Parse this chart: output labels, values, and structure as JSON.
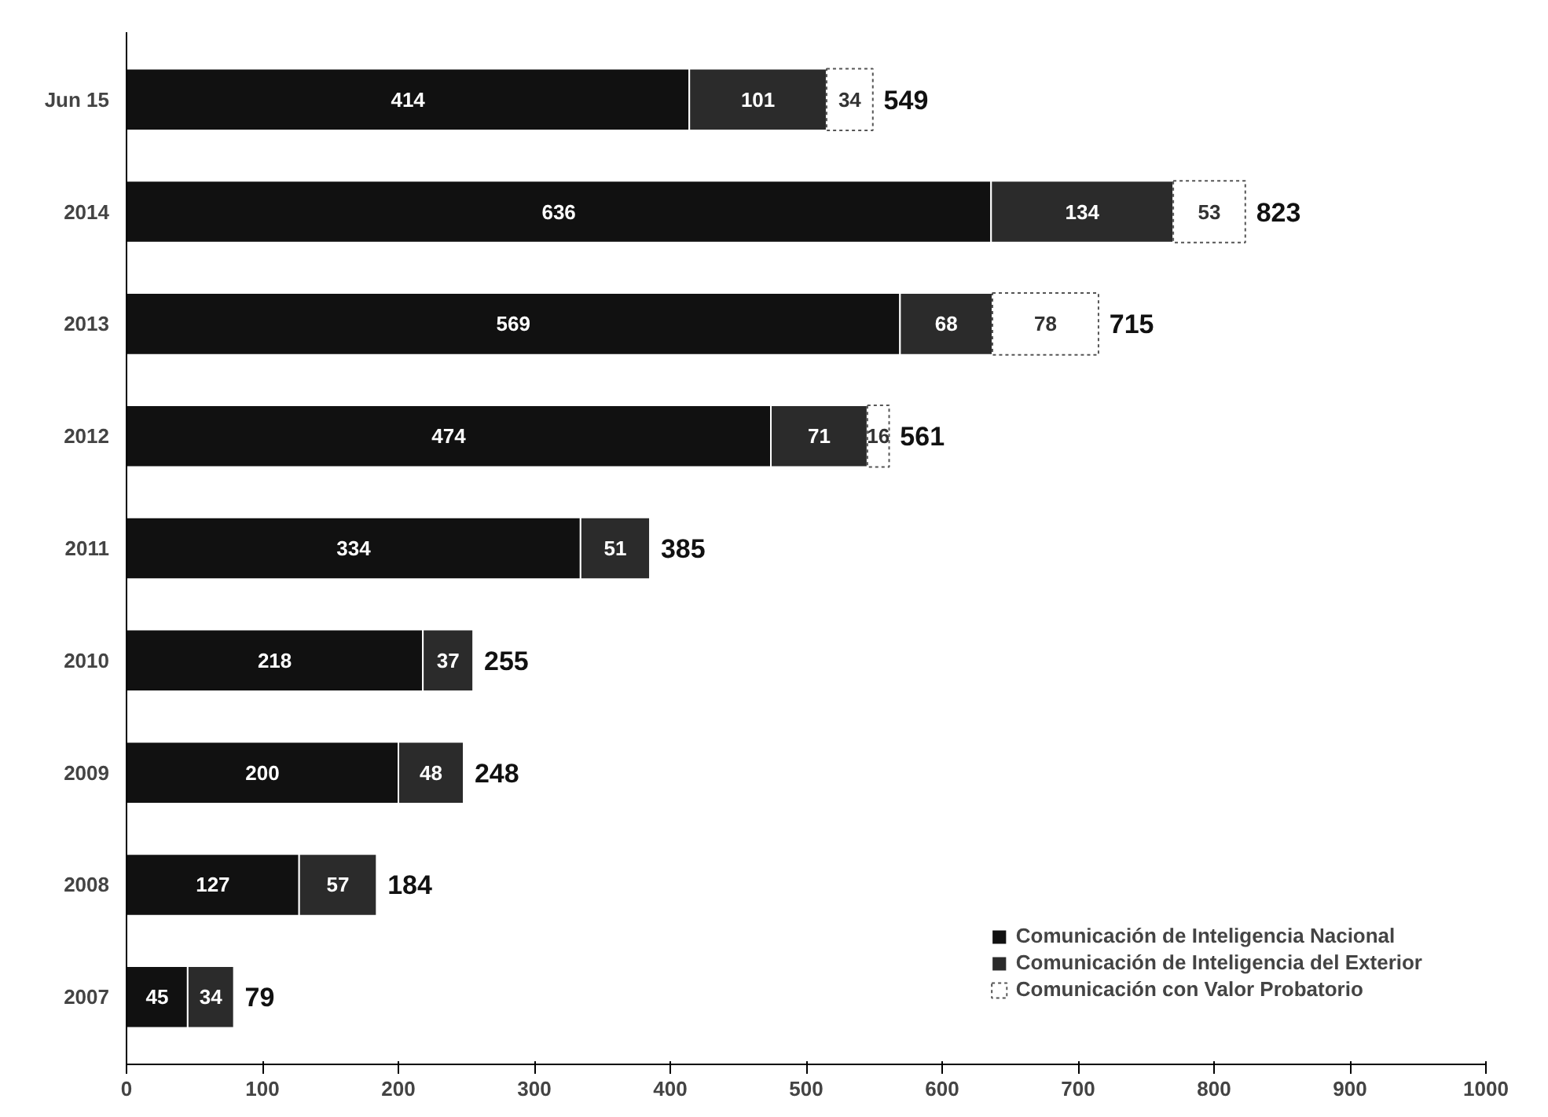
{
  "chart_data": {
    "type": "bar",
    "orientation": "horizontal",
    "stacked": true,
    "categories": [
      "Jun 15",
      "2014",
      "2013",
      "2012",
      "2011",
      "2010",
      "2009",
      "2008",
      "2007"
    ],
    "series": [
      {
        "name": "Comunicación de Inteligencia Nacional",
        "color": "#111111",
        "values": [
          414,
          636,
          569,
          474,
          334,
          218,
          200,
          127,
          45
        ]
      },
      {
        "name": "Comunicación de Inteligencia del Exterior",
        "color": "#2b2b2b",
        "values": [
          101,
          134,
          68,
          71,
          51,
          37,
          48,
          57,
          34
        ]
      },
      {
        "name": "Comunicación con Valor Probatorio",
        "color": "#ffffff",
        "values": [
          34,
          53,
          78,
          16,
          null,
          null,
          null,
          null,
          null
        ]
      }
    ],
    "xlim": [
      0,
      1000
    ],
    "xticks": [
      0,
      100,
      200,
      300,
      400,
      500,
      600,
      700,
      800,
      900,
      1000
    ],
    "data_labels": true,
    "totals": [
      "549",
      "823",
      "715",
      "561",
      "385",
      "255",
      "248",
      "184",
      "79"
    ],
    "legend": "bottom right",
    "grid": false
  }
}
